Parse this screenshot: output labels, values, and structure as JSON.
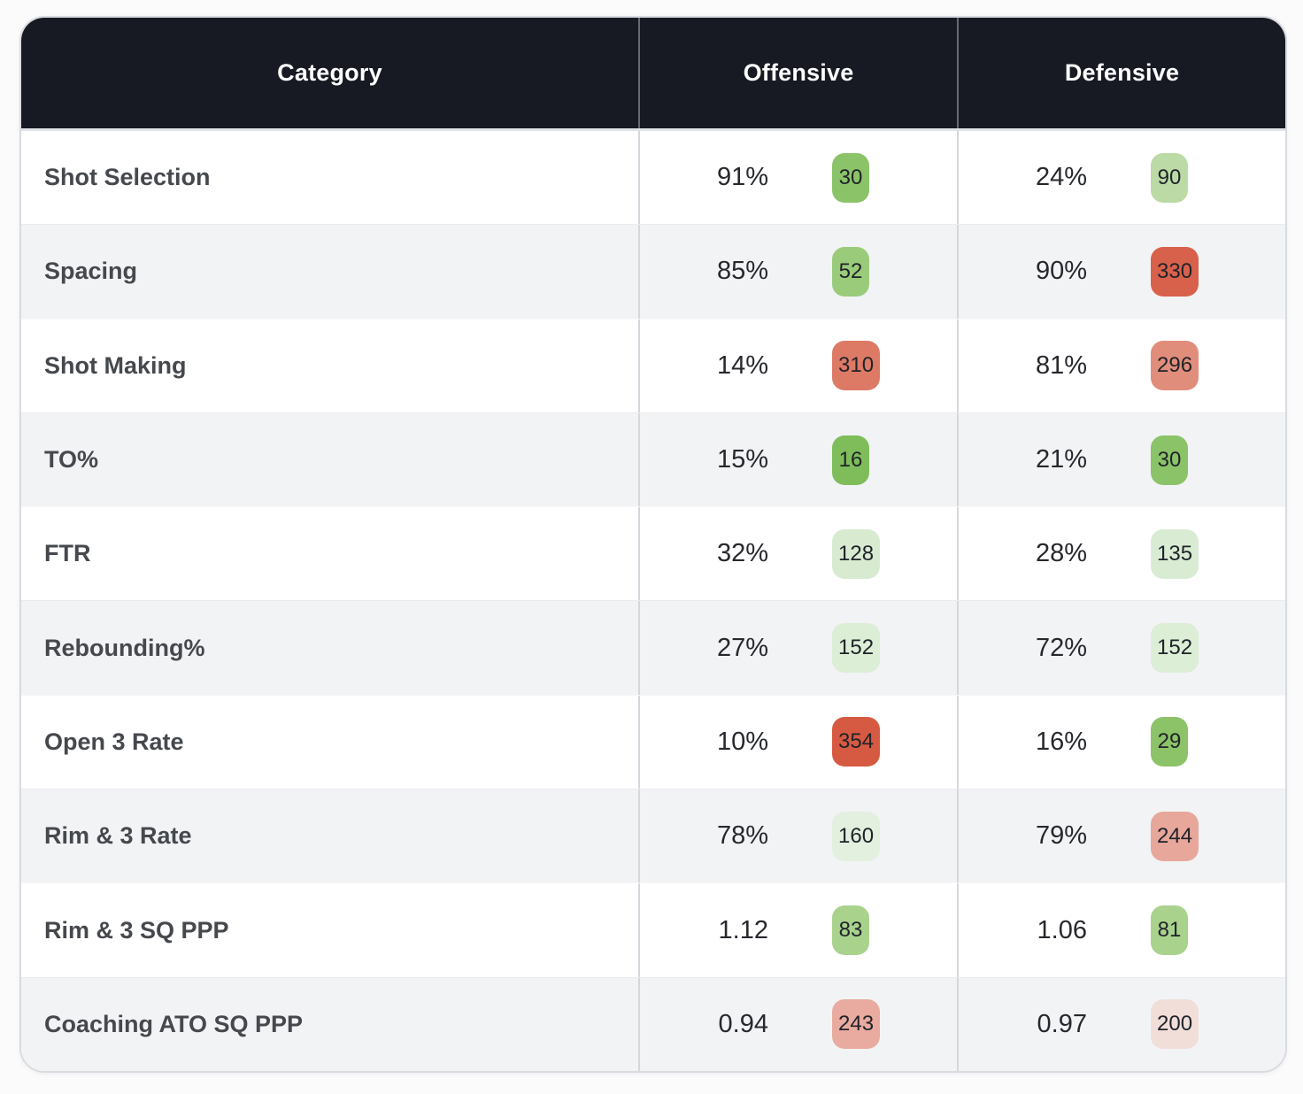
{
  "table": {
    "header": {
      "category": "Category",
      "offensive": "Offensive",
      "defensive": "Defensive"
    },
    "rows": [
      {
        "category": "Shot Selection",
        "off": {
          "value": "91%",
          "rank": "30",
          "color": "#8bc369"
        },
        "def": {
          "value": "24%",
          "rank": "90",
          "color": "#bbdaa6"
        }
      },
      {
        "category": "Spacing",
        "off": {
          "value": "85%",
          "rank": "52",
          "color": "#9acb7b"
        },
        "def": {
          "value": "90%",
          "rank": "330",
          "color": "#d8614b"
        }
      },
      {
        "category": "Shot Making",
        "off": {
          "value": "14%",
          "rank": "310",
          "color": "#dd7a66"
        },
        "def": {
          "value": "81%",
          "rank": "296",
          "color": "#e18d7b"
        }
      },
      {
        "category": "TO%",
        "off": {
          "value": "15%",
          "rank": "16",
          "color": "#7fbd5b"
        },
        "def": {
          "value": "21%",
          "rank": "30",
          "color": "#8bc369"
        }
      },
      {
        "category": "FTR",
        "off": {
          "value": "32%",
          "rank": "128",
          "color": "#d8ebd1"
        },
        "def": {
          "value": "28%",
          "rank": "135",
          "color": "#d9ecd3"
        }
      },
      {
        "category": "Rebounding%",
        "off": {
          "value": "27%",
          "rank": "152",
          "color": "#dceed6"
        },
        "def": {
          "value": "72%",
          "rank": "152",
          "color": "#dceed6"
        }
      },
      {
        "category": "Open 3 Rate",
        "off": {
          "value": "10%",
          "rank": "354",
          "color": "#d65a42"
        },
        "def": {
          "value": "16%",
          "rank": "29",
          "color": "#8cc368"
        }
      },
      {
        "category": "Rim & 3 Rate",
        "off": {
          "value": "78%",
          "rank": "160",
          "color": "#e3efdf"
        },
        "def": {
          "value": "79%",
          "rank": "244",
          "color": "#e7a79b"
        }
      },
      {
        "category": "Rim & 3 SQ PPP",
        "off": {
          "value": "1.12",
          "rank": "83",
          "color": "#a9d28d"
        },
        "def": {
          "value": "1.06",
          "rank": "81",
          "color": "#a9d28d"
        }
      },
      {
        "category": "Coaching ATO SQ PPP",
        "off": {
          "value": "0.94",
          "rank": "243",
          "color": "#e9aba0"
        },
        "def": {
          "value": "0.97",
          "rank": "200",
          "color": "#f1ded9"
        }
      }
    ]
  },
  "colors": {
    "header_bg": "#171a22",
    "row_alt_bg": "#f2f3f5",
    "divider": "#d5d7dd",
    "card_border": "#d9dbe1",
    "badge_text": "#20232a",
    "rank_scale_good": "#7fbd5b",
    "rank_scale_bad": "#d65a42"
  },
  "chart_data": {
    "type": "table",
    "title": "",
    "columns": [
      "Category",
      "Offensive",
      "Defensive"
    ],
    "rows": [
      {
        "category": "Shot Selection",
        "offensive_value": "91%",
        "offensive_rank": 30,
        "defensive_value": "24%",
        "defensive_rank": 90
      },
      {
        "category": "Spacing",
        "offensive_value": "85%",
        "offensive_rank": 52,
        "defensive_value": "90%",
        "defensive_rank": 330
      },
      {
        "category": "Shot Making",
        "offensive_value": "14%",
        "offensive_rank": 310,
        "defensive_value": "81%",
        "defensive_rank": 296
      },
      {
        "category": "TO%",
        "offensive_value": "15%",
        "offensive_rank": 16,
        "defensive_value": "21%",
        "defensive_rank": 30
      },
      {
        "category": "FTR",
        "offensive_value": "32%",
        "offensive_rank": 128,
        "defensive_value": "28%",
        "defensive_rank": 135
      },
      {
        "category": "Rebounding%",
        "offensive_value": "27%",
        "offensive_rank": 152,
        "defensive_value": "72%",
        "defensive_rank": 152
      },
      {
        "category": "Open 3 Rate",
        "offensive_value": "10%",
        "offensive_rank": 354,
        "defensive_value": "16%",
        "defensive_rank": 29
      },
      {
        "category": "Rim & 3 Rate",
        "offensive_value": "78%",
        "offensive_rank": 160,
        "defensive_value": "79%",
        "defensive_rank": 244
      },
      {
        "category": "Rim & 3 SQ PPP",
        "offensive_value": "1.12",
        "offensive_rank": 83,
        "defensive_value": "1.06",
        "defensive_rank": 81
      },
      {
        "category": "Coaching ATO SQ PPP",
        "offensive_value": "0.94",
        "offensive_rank": 243,
        "defensive_value": "0.97",
        "defensive_rank": 200
      }
    ],
    "legend": "rank badge color scale: green = good rank, red = bad rank (out of ~364)"
  }
}
